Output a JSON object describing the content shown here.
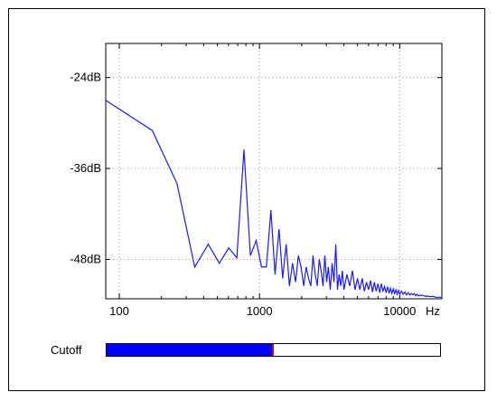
{
  "chart_data": {
    "type": "line",
    "x_scale": "log",
    "xlim": [
      80,
      20000
    ],
    "ylim": [
      -53.2,
      -19.5
    ],
    "y_ticks": [
      {
        "value": -24,
        "label": "-24dB"
      },
      {
        "value": -36,
        "label": "-36dB"
      },
      {
        "value": -48,
        "label": "-48dB"
      }
    ],
    "x_ticks": [
      {
        "value": 100,
        "label": "100"
      },
      {
        "value": 1000,
        "label": "1000"
      },
      {
        "value": 10000,
        "label": "10000"
      }
    ],
    "x_unit": "Hz",
    "line_color": "#1a1aff",
    "x": [
      80,
      172,
      258,
      345,
      431,
      517,
      603,
      689,
      775,
      861,
      947,
      1033,
      1120,
      1206,
      1292,
      1378,
      1464,
      1550,
      1636,
      1722,
      1808,
      1894,
      1980,
      2066,
      2152,
      2238,
      2324,
      2410,
      2496,
      2582,
      2668,
      2754,
      2840,
      2926,
      3012,
      3100,
      3200,
      3300,
      3400,
      3500,
      3600,
      3700,
      3800,
      3900,
      4000,
      4200,
      4400,
      4600,
      4800,
      5000,
      5200,
      5400,
      5600,
      5800,
      6000,
      6200,
      6400,
      6600,
      6800,
      7000,
      7200,
      7400,
      7600,
      7800,
      8000,
      8200,
      8400,
      8600,
      8800,
      9000,
      9200,
      9400,
      9600,
      9800,
      10000,
      10300,
      10600,
      10900,
      11200,
      11500,
      11800,
      12100,
      12400,
      12700,
      13000,
      13300,
      13600,
      13900,
      14200,
      14500,
      14800,
      15100,
      15400,
      15700,
      16000,
      16500,
      17000,
      17500,
      18000,
      18500,
      19000,
      19500,
      20000
    ],
    "values": [
      -27,
      -31,
      -38,
      -49,
      -46,
      -48.5,
      -46.5,
      -47.8,
      -33.5,
      -47.5,
      -45.5,
      -49,
      -49,
      -41.5,
      -50,
      -44,
      -50.5,
      -46,
      -51.5,
      -48.5,
      -51,
      -47.5,
      -49,
      -51.5,
      -49,
      -50.5,
      -51.5,
      -47.5,
      -50,
      -51.5,
      -48,
      -49.5,
      -51.5,
      -47.5,
      -51,
      -49,
      -52,
      -48.5,
      -51,
      -46,
      -52,
      -50,
      -51.5,
      -49.5,
      -52,
      -50,
      -51.5,
      -49.5,
      -52,
      -50.5,
      -52,
      -50.5,
      -52.2,
      -51,
      -52,
      -50.8,
      -52.3,
      -51,
      -52.2,
      -51.2,
      -52.4,
      -51.2,
      -52.2,
      -51.6,
      -52.4,
      -51.6,
      -52.5,
      -51.8,
      -52.5,
      -51.9,
      -52.5,
      -52,
      -52.6,
      -52.1,
      -52.6,
      -52.2,
      -52.6,
      -52.3,
      -52.7,
      -52.4,
      -52.7,
      -52.5,
      -52.7,
      -52.5,
      -52.8,
      -52.6,
      -52.8,
      -52.7,
      -52.8,
      -52.7,
      -52.8,
      -52.8,
      -52.9,
      -52.8,
      -52.9,
      -52.9,
      -52.9,
      -52.9,
      -53,
      -53,
      -53,
      -53,
      -53
    ]
  },
  "cutoff": {
    "label": "Cutoff",
    "fraction": 0.5,
    "fill_color": "#0000ff",
    "thumb_color": "#e00000"
  }
}
